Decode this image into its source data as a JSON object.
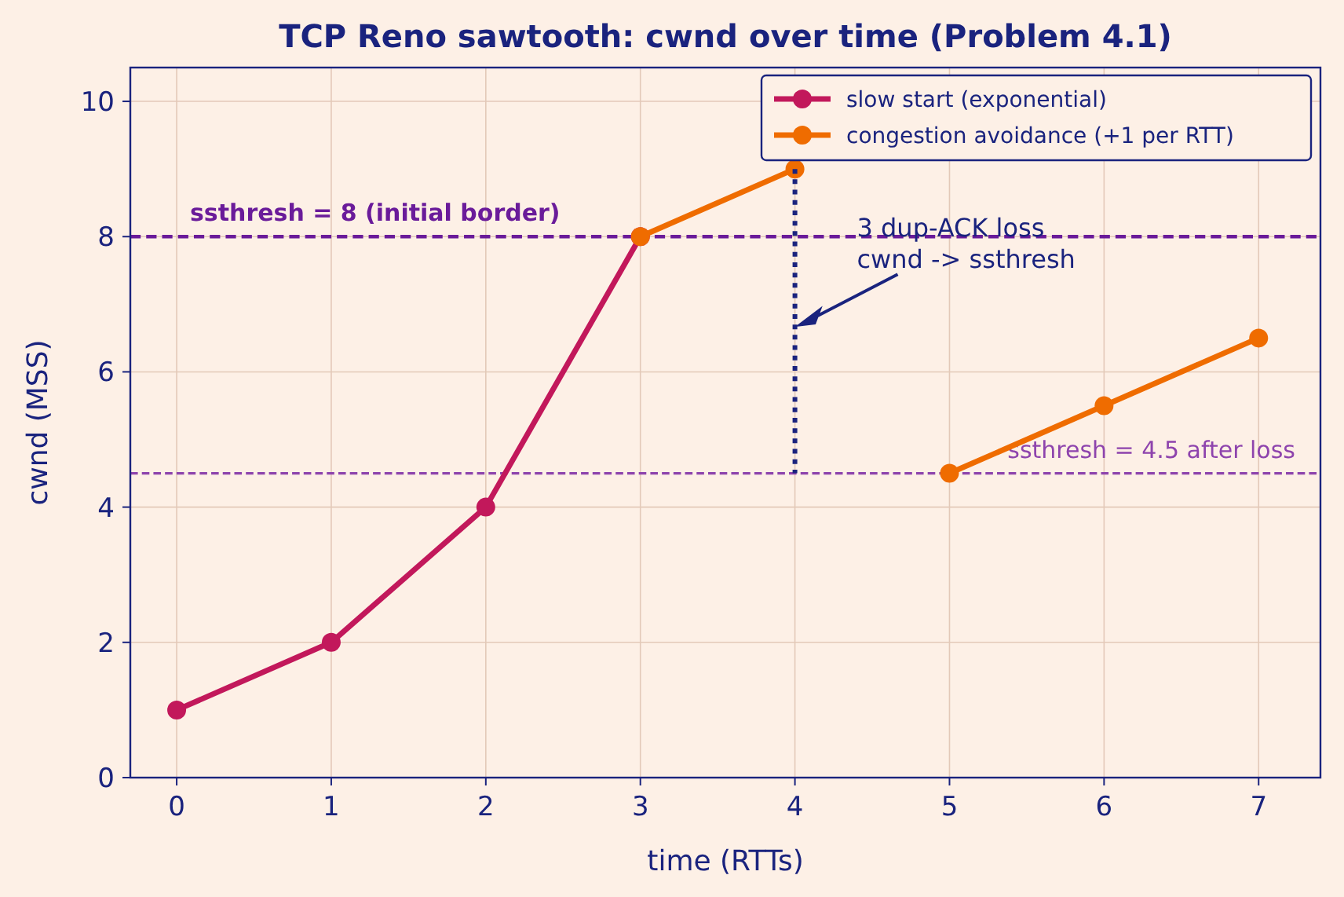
{
  "chart_data": {
    "type": "line",
    "title": "TCP Reno sawtooth: cwnd over time (Problem 4.1)",
    "xlabel": "time  (RTTs)",
    "ylabel": "cwnd  (MSS)",
    "xlim": [
      -0.3,
      7.4
    ],
    "xticks": [
      0,
      1,
      2,
      3,
      4,
      5,
      6,
      7
    ],
    "ylim": [
      0,
      10.5
    ],
    "yticks": [
      0,
      2,
      4,
      6,
      8,
      10
    ],
    "grid": true,
    "legend": "top right",
    "marker": "circle",
    "series": [
      {
        "name": "slow start (exponential)",
        "color": "#c2185b",
        "x": [
          0,
          1,
          2,
          3
        ],
        "values": [
          1,
          2,
          4,
          8
        ]
      },
      {
        "name": "congestion avoidance (+1 per RTT)",
        "color": "#ef6c00",
        "x": [
          3,
          4
        ],
        "values": [
          8,
          9
        ]
      },
      {
        "color": "#ef6c00",
        "x": [
          5,
          6,
          7
        ],
        "values": [
          4.5,
          5.5,
          6.5
        ]
      },
      {
        "color": "#1a237e",
        "x": [
          4,
          4
        ],
        "values": [
          9,
          4.5
        ],
        "marker": "none",
        "line_style": "dotted"
      }
    ],
    "ref_lines": [
      {
        "axis": "y",
        "value": 8,
        "label": "ssthresh = 8 (initial border)",
        "color": "#6a1b9a",
        "line_style": "dashed"
      },
      {
        "axis": "y",
        "value": 4.5,
        "label": "ssthresh = 4.5 after loss",
        "color": "#8e44ad",
        "line_style": "dashed"
      }
    ],
    "annotations": [
      "3 dup-ACK loss\ncwnd -> ssthresh"
    ]
  }
}
